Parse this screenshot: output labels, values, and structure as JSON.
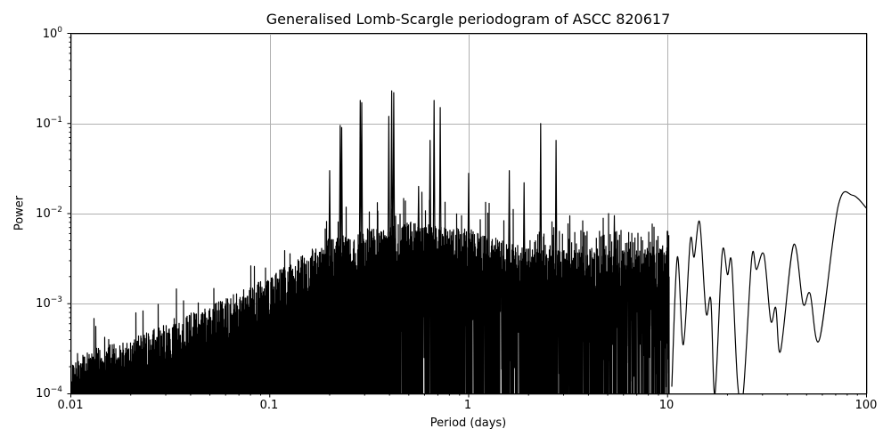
{
  "chart_data": {
    "type": "line",
    "title": "Generalised Lomb-Scargle periodogram of ASCC 820617",
    "xlabel": "Period (days)",
    "ylabel": "Power",
    "xscale": "log",
    "yscale": "log",
    "xlim": [
      0.01,
      100
    ],
    "ylim": [
      0.0001,
      1
    ],
    "grid": true,
    "legend": null,
    "x_ticks": [
      "0.01",
      "0.1",
      "1",
      "10",
      "100"
    ],
    "y_ticks": [
      {
        "base": "10",
        "exp": "0"
      },
      {
        "base": "10",
        "exp": "−1"
      },
      {
        "base": "10",
        "exp": "−2"
      },
      {
        "base": "10",
        "exp": "−3"
      },
      {
        "base": "10",
        "exp": "−4"
      }
    ],
    "line_color": "#000000",
    "grid_color": "#b0b0b0",
    "noise_floor_envelope": [
      {
        "period": 0.01,
        "power": 0.0002
      },
      {
        "period": 0.02,
        "power": 0.0003
      },
      {
        "period": 0.05,
        "power": 0.0007
      },
      {
        "period": 0.1,
        "power": 0.0015
      },
      {
        "period": 0.2,
        "power": 0.004
      },
      {
        "period": 0.5,
        "power": 0.006
      },
      {
        "period": 1.0,
        "power": 0.005
      },
      {
        "period": 2.0,
        "power": 0.003
      }
    ],
    "notable_peaks": [
      {
        "period": 0.226,
        "power": 0.095
      },
      {
        "period": 0.23,
        "power": 0.09
      },
      {
        "period": 0.285,
        "power": 0.18
      },
      {
        "period": 0.29,
        "power": 0.17
      },
      {
        "period": 0.41,
        "power": 0.23
      },
      {
        "period": 0.42,
        "power": 0.22
      },
      {
        "period": 0.397,
        "power": 0.12
      },
      {
        "period": 0.67,
        "power": 0.18
      },
      {
        "period": 0.72,
        "power": 0.15
      },
      {
        "period": 0.64,
        "power": 0.065
      },
      {
        "period": 0.2,
        "power": 0.03
      },
      {
        "period": 0.56,
        "power": 0.02
      },
      {
        "period": 1.0,
        "power": 0.028
      },
      {
        "period": 1.9,
        "power": 0.022
      },
      {
        "period": 2.3,
        "power": 0.1
      },
      {
        "period": 2.75,
        "power": 0.065
      },
      {
        "period": 1.6,
        "power": 0.03
      },
      {
        "period": 5.4,
        "power": 0.0095
      },
      {
        "period": 8.0,
        "power": 0.0022
      }
    ],
    "long_period_curve": [
      {
        "period": 10.5,
        "power": 0.00012
      },
      {
        "period": 11.2,
        "power": 0.0033
      },
      {
        "period": 12.0,
        "power": 0.00035
      },
      {
        "period": 13.0,
        "power": 0.005
      },
      {
        "period": 13.6,
        "power": 0.0033
      },
      {
        "period": 14.5,
        "power": 0.008
      },
      {
        "period": 15.6,
        "power": 0.0008
      },
      {
        "period": 16.5,
        "power": 0.0011
      },
      {
        "period": 17.3,
        "power": 0.0001
      },
      {
        "period": 18.8,
        "power": 0.0036
      },
      {
        "period": 20.0,
        "power": 0.0021
      },
      {
        "period": 21.0,
        "power": 0.0028
      },
      {
        "period": 22.5,
        "power": 0.00013
      },
      {
        "period": 24.0,
        "power": 0.0001
      },
      {
        "period": 26.5,
        "power": 0.0032
      },
      {
        "period": 28.0,
        "power": 0.0024
      },
      {
        "period": 30.5,
        "power": 0.0035
      },
      {
        "period": 33.0,
        "power": 0.00065
      },
      {
        "period": 35.0,
        "power": 0.0009
      },
      {
        "period": 37.0,
        "power": 0.0003
      },
      {
        "period": 43.0,
        "power": 0.0045
      },
      {
        "period": 48.0,
        "power": 0.001
      },
      {
        "period": 52.0,
        "power": 0.0013
      },
      {
        "period": 58.0,
        "power": 0.0004
      },
      {
        "period": 72.0,
        "power": 0.012
      },
      {
        "period": 85.0,
        "power": 0.016
      },
      {
        "period": 100.0,
        "power": 0.0115
      }
    ]
  }
}
